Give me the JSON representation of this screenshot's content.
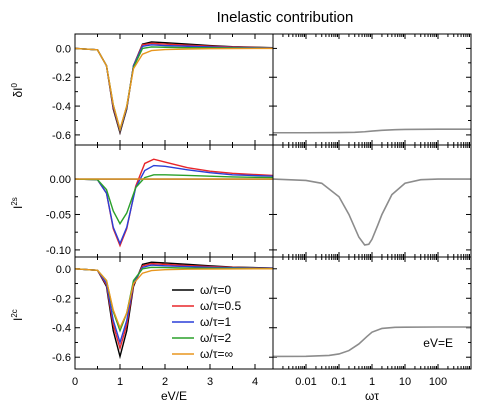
{
  "chart_data": {
    "type": "line",
    "title": "Inelastic contribution",
    "legend": {
      "placement": "bottom-left panel, center",
      "entries": [
        {
          "label": "ω/τ=0",
          "color": "#000000"
        },
        {
          "label": "ω/τ=0.5",
          "color": "#e8262a"
        },
        {
          "label": "ω/τ=1",
          "color": "#2a3fd8"
        },
        {
          "label": "ω/τ=2",
          "color": "#2aa02a"
        },
        {
          "label": "ω/τ=∞",
          "color": "#e8961e"
        }
      ]
    },
    "left_x": {
      "label": "eV/E",
      "range": [
        0,
        4.4
      ],
      "ticks": [
        0,
        1,
        2,
        3,
        4
      ]
    },
    "right_x": {
      "label": "ωτ",
      "scale": "log",
      "range": [
        0.001,
        1000
      ],
      "ticks": [
        0.01,
        0.1,
        1,
        10,
        100
      ],
      "tick_labels": [
        "0.01",
        "0.1",
        "1",
        "10",
        "100"
      ]
    },
    "rows": [
      {
        "ylabel": "δI",
        "ylabel_sup": "0",
        "ylim": [
          -0.67,
          0.1
        ],
        "yticks": [
          0.0,
          -0.2,
          -0.4,
          -0.6
        ],
        "ytick_labels": [
          "0.0",
          "-0.2",
          "-0.4",
          "-0.6"
        ],
        "left_series": [
          {
            "name": "ω/τ=0",
            "color": "#000000",
            "x": [
              0,
              0.5,
              0.7,
              0.85,
              1.0,
              1.15,
              1.3,
              1.5,
              1.7,
              2.0,
              2.5,
              3.0,
              3.5,
              4.4
            ],
            "y": [
              0,
              -0.01,
              -0.12,
              -0.42,
              -0.585,
              -0.42,
              -0.12,
              0.03,
              0.045,
              0.04,
              0.03,
              0.02,
              0.012,
              0.005
            ]
          },
          {
            "name": "ω/τ=0.5",
            "color": "#e8262a",
            "x": [
              0,
              0.5,
              0.7,
              0.85,
              1.0,
              1.15,
              1.3,
              1.5,
              1.7,
              2.0,
              2.5,
              3.0,
              3.5,
              4.4
            ],
            "y": [
              0,
              -0.01,
              -0.12,
              -0.41,
              -0.575,
              -0.41,
              -0.12,
              0.025,
              0.035,
              0.03,
              0.022,
              0.015,
              0.01,
              0.004
            ]
          },
          {
            "name": "ω/τ=1",
            "color": "#2a3fd8",
            "x": [
              0,
              0.5,
              0.7,
              0.85,
              1.0,
              1.15,
              1.3,
              1.5,
              1.7,
              2.0,
              2.5,
              3.0,
              3.5,
              4.4
            ],
            "y": [
              0,
              -0.01,
              -0.12,
              -0.4,
              -0.57,
              -0.41,
              -0.12,
              0.015,
              0.025,
              0.02,
              0.015,
              0.01,
              0.007,
              0.003
            ]
          },
          {
            "name": "ω/τ=2",
            "color": "#2aa02a",
            "x": [
              0,
              0.5,
              0.7,
              0.85,
              1.0,
              1.15,
              1.3,
              1.5,
              1.7,
              2.0,
              2.5,
              3.0,
              3.5,
              4.4
            ],
            "y": [
              0,
              -0.01,
              -0.12,
              -0.39,
              -0.565,
              -0.4,
              -0.13,
              0.0,
              0.01,
              0.008,
              0.005,
              0.004,
              0.003,
              0.001
            ]
          },
          {
            "name": "ω/τ=∞",
            "color": "#e8961e",
            "x": [
              0,
              0.5,
              0.7,
              0.85,
              1.0,
              1.15,
              1.3,
              1.5,
              1.7,
              2.0,
              2.5,
              3.0,
              3.5,
              4.4
            ],
            "y": [
              0,
              -0.01,
              -0.12,
              -0.39,
              -0.56,
              -0.4,
              -0.14,
              -0.04,
              -0.015,
              -0.008,
              -0.004,
              -0.002,
              -0.001,
              0
            ]
          }
        ],
        "right_series": {
          "color": "#8c8c8c",
          "x": [
            0.001,
            0.01,
            0.1,
            0.3,
            0.6,
            1,
            2,
            5,
            10,
            100,
            1000
          ],
          "y": [
            -0.585,
            -0.585,
            -0.584,
            -0.582,
            -0.578,
            -0.573,
            -0.568,
            -0.564,
            -0.562,
            -0.56,
            -0.56
          ]
        }
      },
      {
        "ylabel": "I",
        "ylabel_sup": "2s",
        "ylim": [
          -0.11,
          0.048
        ],
        "yticks": [
          0.0,
          -0.05,
          -0.1
        ],
        "ytick_labels": [
          "0.00",
          "-0.05",
          "-0.10"
        ],
        "left_series": [
          {
            "name": "ω/τ=0",
            "color": "#000000",
            "x": [
              0,
              4.4
            ],
            "y": [
              0,
              0
            ]
          },
          {
            "name": "ω/τ=0.5",
            "color": "#e8262a",
            "x": [
              0,
              0.5,
              0.7,
              0.85,
              1.0,
              1.15,
              1.35,
              1.55,
              1.75,
              2.0,
              2.5,
              3.0,
              3.5,
              4.4
            ],
            "y": [
              0,
              -0.001,
              -0.02,
              -0.07,
              -0.094,
              -0.07,
              -0.01,
              0.022,
              0.028,
              0.024,
              0.016,
              0.011,
              0.008,
              0.005
            ]
          },
          {
            "name": "ω/τ=1",
            "color": "#2a3fd8",
            "x": [
              0,
              0.5,
              0.7,
              0.85,
              1.0,
              1.15,
              1.35,
              1.55,
              1.75,
              2.0,
              2.5,
              3.0,
              3.5,
              4.4
            ],
            "y": [
              0,
              -0.001,
              -0.02,
              -0.068,
              -0.091,
              -0.068,
              -0.012,
              0.012,
              0.019,
              0.018,
              0.013,
              0.009,
              0.006,
              0.004
            ]
          },
          {
            "name": "ω/τ=2",
            "color": "#2aa02a",
            "x": [
              0,
              0.5,
              0.7,
              0.85,
              1.0,
              1.15,
              1.35,
              1.55,
              1.75,
              2.0,
              2.5,
              3.0,
              3.5,
              4.4
            ],
            "y": [
              0,
              -0.001,
              -0.015,
              -0.045,
              -0.063,
              -0.048,
              -0.012,
              0.002,
              0.006,
              0.006,
              0.005,
              0.004,
              0.003,
              0.002
            ]
          },
          {
            "name": "ω/τ=∞",
            "color": "#e8961e",
            "x": [
              0,
              4.4
            ],
            "y": [
              0,
              0
            ]
          }
        ],
        "right_series": {
          "color": "#8c8c8c",
          "x": [
            0.001,
            0.01,
            0.03,
            0.1,
            0.2,
            0.4,
            0.6,
            0.8,
            1,
            1.5,
            2,
            4,
            10,
            30,
            100,
            1000
          ],
          "y": [
            0,
            -0.002,
            -0.006,
            -0.025,
            -0.05,
            -0.082,
            -0.093,
            -0.092,
            -0.085,
            -0.065,
            -0.05,
            -0.022,
            -0.006,
            -0.001,
            0,
            0
          ]
        }
      },
      {
        "ylabel": "I",
        "ylabel_sup": "2c",
        "ylim": [
          -0.68,
          0.08
        ],
        "yticks": [
          0.0,
          -0.2,
          -0.4,
          -0.6
        ],
        "ytick_labels": [
          "0.0",
          "-0.2",
          "-0.4",
          "-0.6"
        ],
        "left_series": [
          {
            "name": "ω/τ=0",
            "color": "#000000",
            "x": [
              0,
              0.5,
              0.7,
              0.85,
              1.0,
              1.15,
              1.3,
              1.5,
              1.7,
              2.0,
              2.5,
              3.0,
              3.5,
              4.4
            ],
            "y": [
              0,
              -0.01,
              -0.12,
              -0.42,
              -0.595,
              -0.42,
              -0.12,
              0.03,
              0.045,
              0.04,
              0.03,
              0.02,
              0.012,
              0.005
            ]
          },
          {
            "name": "ω/τ=0.5",
            "color": "#e8262a",
            "x": [
              0,
              0.5,
              0.7,
              0.85,
              1.0,
              1.15,
              1.3,
              1.5,
              1.7,
              2.0,
              2.5,
              3.0,
              3.5,
              4.4
            ],
            "y": [
              0,
              -0.01,
              -0.11,
              -0.38,
              -0.54,
              -0.38,
              -0.11,
              0.02,
              0.035,
              0.03,
              0.022,
              0.015,
              0.01,
              0.004
            ]
          },
          {
            "name": "ω/τ=1",
            "color": "#2a3fd8",
            "x": [
              0,
              0.5,
              0.7,
              0.85,
              1.0,
              1.15,
              1.3,
              1.5,
              1.7,
              2.0,
              2.5,
              3.0,
              3.5,
              4.4
            ],
            "y": [
              0,
              -0.01,
              -0.1,
              -0.35,
              -0.5,
              -0.35,
              -0.1,
              0.01,
              0.025,
              0.02,
              0.015,
              0.01,
              0.007,
              0.003
            ]
          },
          {
            "name": "ω/τ=2",
            "color": "#2aa02a",
            "x": [
              0,
              0.5,
              0.7,
              0.85,
              1.0,
              1.15,
              1.3,
              1.5,
              1.7,
              2.0,
              2.5,
              3.0,
              3.5,
              4.4
            ],
            "y": [
              0,
              -0.01,
              -0.08,
              -0.29,
              -0.42,
              -0.3,
              -0.08,
              0.0,
              0.01,
              0.008,
              0.005,
              0.004,
              0.003,
              0.001
            ]
          },
          {
            "name": "ω/τ=∞",
            "color": "#e8961e",
            "x": [
              0,
              0.5,
              0.7,
              0.85,
              1.0,
              1.15,
              1.3,
              1.5,
              1.7,
              2.0,
              2.5,
              3.0,
              3.5,
              4.4
            ],
            "y": [
              0,
              -0.01,
              -0.08,
              -0.28,
              -0.4,
              -0.3,
              -0.1,
              -0.03,
              -0.012,
              -0.006,
              -0.003,
              -0.002,
              -0.001,
              0
            ]
          }
        ],
        "right_series": {
          "color": "#8c8c8c",
          "x": [
            0.001,
            0.01,
            0.05,
            0.1,
            0.2,
            0.4,
            0.7,
            1,
            2,
            5,
            10,
            100,
            1000
          ],
          "y": [
            -0.595,
            -0.594,
            -0.588,
            -0.578,
            -0.555,
            -0.51,
            -0.46,
            -0.43,
            -0.405,
            -0.397,
            -0.396,
            -0.395,
            -0.395
          ]
        },
        "annotation": "eV=E"
      }
    ]
  }
}
